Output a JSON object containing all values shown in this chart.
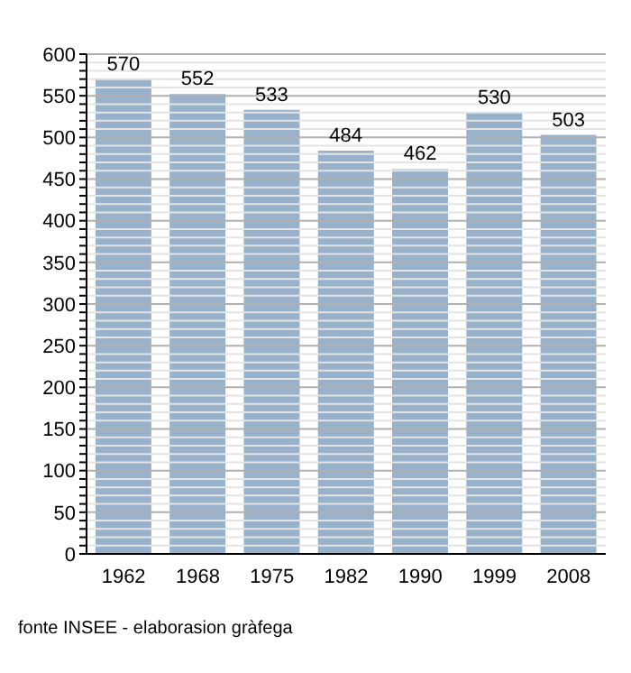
{
  "chart_data": {
    "type": "bar",
    "categories": [
      "1962",
      "1968",
      "1975",
      "1982",
      "1990",
      "1999",
      "2008"
    ],
    "values": [
      570,
      552,
      533,
      484,
      462,
      530,
      503
    ],
    "color": "#98b2cb",
    "data_labels": true,
    "grid": "y",
    "ylim": [
      0,
      600
    ],
    "yticks": [
      0,
      {
        "value": 10,
        "label": null
      },
      {
        "value": 20,
        "label": null
      },
      {
        "value": 30,
        "label": null
      },
      {
        "value": 40,
        "label": null
      },
      50,
      {
        "value": 60,
        "label": null
      },
      {
        "value": 70,
        "label": null
      },
      {
        "value": 80,
        "label": null
      },
      {
        "value": 90,
        "label": null
      },
      100,
      {
        "value": 110,
        "label": null
      },
      {
        "value": 120,
        "label": null
      },
      {
        "value": 130,
        "label": null
      },
      {
        "value": 140,
        "label": null
      },
      150,
      {
        "value": 160,
        "label": null
      },
      {
        "value": 170,
        "label": null
      },
      {
        "value": 180,
        "label": null
      },
      {
        "value": 190,
        "label": null
      },
      200,
      {
        "value": 210,
        "label": null
      },
      {
        "value": 220,
        "label": null
      },
      {
        "value": 230,
        "label": null
      },
      {
        "value": 240,
        "label": null
      },
      250,
      {
        "value": 260,
        "label": null
      },
      {
        "value": 270,
        "label": null
      },
      {
        "value": 280,
        "label": null
      },
      {
        "value": 290,
        "label": null
      },
      300,
      {
        "value": 310,
        "label": null
      },
      {
        "value": 320,
        "label": null
      },
      {
        "value": 330,
        "label": null
      },
      {
        "value": 340,
        "label": null
      },
      350,
      {
        "value": 360,
        "label": null
      },
      {
        "value": 370,
        "label": null
      },
      {
        "value": 380,
        "label": null
      },
      {
        "value": 390,
        "label": null
      },
      400,
      {
        "value": 410,
        "label": null
      },
      {
        "value": 420,
        "label": null
      },
      {
        "value": 430,
        "label": null
      },
      {
        "value": 440,
        "label": null
      },
      450,
      {
        "value": 460,
        "label": null
      },
      {
        "value": 470,
        "label": null
      },
      {
        "value": 480,
        "label": null
      },
      {
        "value": 490,
        "label": null
      },
      500,
      {
        "value": 510,
        "label": null
      },
      {
        "value": 520,
        "label": null
      },
      {
        "value": 530,
        "label": null
      },
      {
        "value": 540,
        "label": null
      },
      550,
      {
        "value": 560,
        "label": null
      },
      {
        "value": 570,
        "label": null
      },
      {
        "value": 580,
        "label": null
      },
      {
        "value": 590,
        "label": null
      },
      600
    ],
    "annotations": [
      "fonte INSEE - elaborasion gràfega"
    ]
  }
}
